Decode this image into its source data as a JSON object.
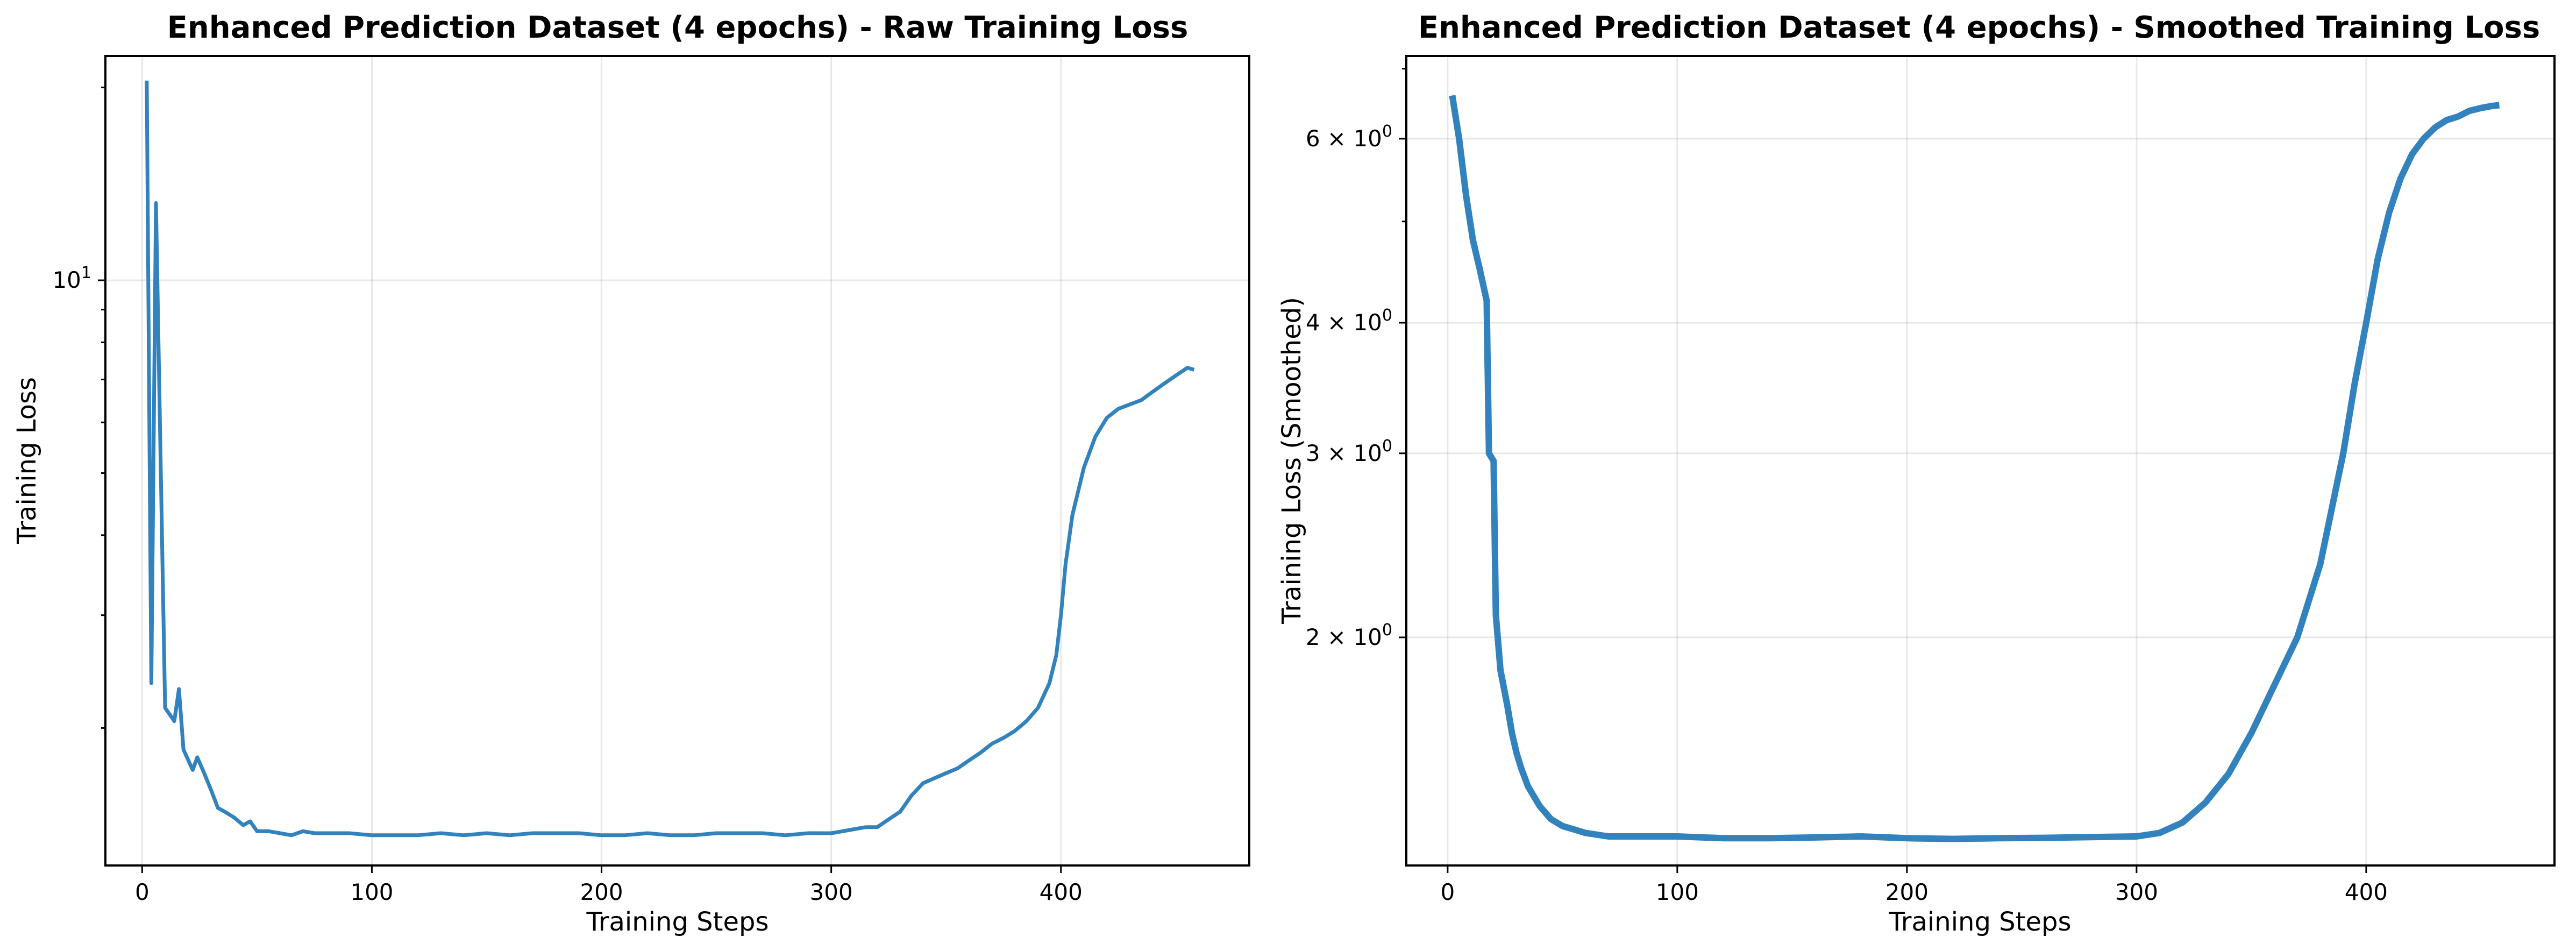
{
  "chart_data": [
    {
      "type": "line",
      "title": "Enhanced Prediction Dataset (4 epochs) - Raw Training Loss",
      "xlabel": "Training Steps",
      "ylabel": "Training Loss",
      "yscale": "log",
      "xlim": [
        -16,
        482
      ],
      "ylim": [
        1.22,
        22.4
      ],
      "xticks": [
        0,
        100,
        200,
        300,
        400
      ],
      "yticks": [
        {
          "value": 10,
          "base": "10",
          "exp": "1"
        }
      ],
      "grid": true,
      "color": "#3282bd",
      "x": [
        2,
        4,
        6,
        10,
        14,
        16,
        18,
        22,
        24,
        27,
        30,
        33,
        36,
        40,
        44,
        47,
        50,
        55,
        60,
        65,
        70,
        75,
        80,
        90,
        100,
        110,
        120,
        130,
        140,
        150,
        160,
        170,
        180,
        190,
        200,
        210,
        220,
        230,
        240,
        250,
        260,
        270,
        280,
        290,
        300,
        305,
        310,
        315,
        320,
        325,
        330,
        335,
        340,
        345,
        350,
        355,
        360,
        365,
        370,
        375,
        380,
        385,
        390,
        395,
        398,
        400,
        402,
        405,
        410,
        415,
        420,
        425,
        430,
        435,
        440,
        445,
        450,
        455,
        458
      ],
      "y": [
        20.5,
        2.35,
        13.2,
        2.15,
        2.05,
        2.3,
        1.85,
        1.72,
        1.8,
        1.7,
        1.6,
        1.5,
        1.48,
        1.45,
        1.41,
        1.43,
        1.38,
        1.38,
        1.37,
        1.36,
        1.38,
        1.37,
        1.37,
        1.37,
        1.36,
        1.36,
        1.36,
        1.37,
        1.36,
        1.37,
        1.36,
        1.37,
        1.37,
        1.37,
        1.36,
        1.36,
        1.37,
        1.36,
        1.36,
        1.37,
        1.37,
        1.37,
        1.36,
        1.37,
        1.37,
        1.38,
        1.39,
        1.4,
        1.4,
        1.44,
        1.48,
        1.57,
        1.64,
        1.67,
        1.7,
        1.73,
        1.78,
        1.83,
        1.89,
        1.93,
        1.98,
        2.05,
        2.15,
        2.35,
        2.6,
        3.0,
        3.6,
        4.3,
        5.1,
        5.7,
        6.1,
        6.3,
        6.4,
        6.5,
        6.7,
        6.9,
        7.1,
        7.3,
        7.25
      ]
    },
    {
      "type": "line",
      "title": "Enhanced Prediction Dataset (4 epochs) - Smoothed Training Loss",
      "xlabel": "Training Steps",
      "ylabel": "Training Loss (Smoothed)",
      "yscale": "log",
      "xlim": [
        -18,
        482
      ],
      "ylim": [
        1.21,
        7.2
      ],
      "xticks": [
        0,
        100,
        200,
        300,
        400
      ],
      "yticks": [
        {
          "value": 6,
          "base": "6 × 10",
          "exp": "0"
        },
        {
          "value": 4,
          "base": "4 × 10",
          "exp": "0"
        },
        {
          "value": 3,
          "base": "3 × 10",
          "exp": "0"
        },
        {
          "value": 2,
          "base": "2 × 10",
          "exp": "0"
        }
      ],
      "grid": true,
      "color": "#3282bd",
      "x": [
        2,
        5,
        8,
        11,
        14,
        17,
        18,
        20,
        21,
        23,
        26,
        28,
        30,
        32,
        35,
        40,
        45,
        50,
        55,
        60,
        70,
        80,
        90,
        100,
        120,
        140,
        160,
        180,
        200,
        220,
        240,
        260,
        280,
        300,
        310,
        320,
        330,
        340,
        350,
        360,
        370,
        380,
        390,
        395,
        400,
        405,
        410,
        415,
        420,
        425,
        430,
        435,
        440,
        445,
        450,
        455,
        458
      ],
      "y": [
        6.6,
        6.0,
        5.3,
        4.8,
        4.5,
        4.2,
        3.0,
        2.95,
        2.1,
        1.86,
        1.72,
        1.62,
        1.55,
        1.5,
        1.44,
        1.38,
        1.34,
        1.32,
        1.31,
        1.3,
        1.29,
        1.29,
        1.29,
        1.29,
        1.285,
        1.285,
        1.287,
        1.29,
        1.285,
        1.283,
        1.285,
        1.286,
        1.288,
        1.29,
        1.3,
        1.33,
        1.39,
        1.48,
        1.62,
        1.8,
        2.0,
        2.35,
        3.0,
        3.5,
        4.0,
        4.6,
        5.1,
        5.5,
        5.8,
        6.0,
        6.15,
        6.25,
        6.3,
        6.38,
        6.42,
        6.45,
        6.46
      ]
    }
  ]
}
